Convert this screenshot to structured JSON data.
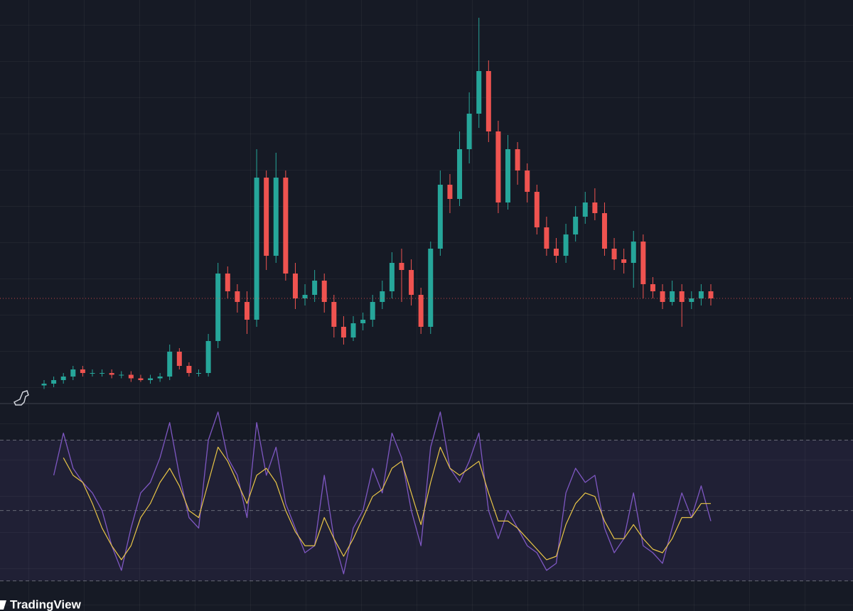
{
  "chart_data": [
    {
      "type": "candlestick",
      "categories": [
        null,
        null,
        null,
        null,
        null,
        null,
        null,
        null,
        null,
        null,
        null,
        null,
        null,
        null,
        null,
        null,
        null,
        null,
        null,
        null,
        null,
        null,
        null,
        null,
        null,
        null,
        null,
        null,
        null,
        null,
        null,
        null,
        null,
        null,
        null,
        null,
        null,
        null,
        null,
        null,
        null,
        null,
        null,
        null,
        null,
        null,
        null,
        null,
        null,
        null,
        null,
        null,
        null,
        null,
        null,
        null,
        null,
        null,
        null,
        null,
        null,
        null,
        null,
        null,
        null,
        null,
        null,
        null,
        null,
        null
      ],
      "open": [
        3.5,
        4,
        5,
        6,
        8,
        7,
        7,
        7,
        6.5,
        6.5,
        5.5,
        5,
        5.5,
        6,
        13,
        9,
        7,
        7,
        16,
        35,
        30,
        27,
        22,
        62,
        40,
        62,
        35,
        28,
        29,
        33,
        27,
        20,
        17,
        21,
        22,
        27,
        30,
        38,
        36,
        29,
        20,
        42,
        60,
        56,
        70,
        80,
        92,
        75,
        55,
        70,
        64,
        58,
        48,
        42,
        40,
        46,
        51,
        55,
        52,
        42,
        39,
        38,
        44,
        32,
        30,
        27,
        30,
        27,
        28,
        30
      ],
      "high": [
        5,
        6,
        7,
        9,
        9,
        8,
        8,
        8,
        7.5,
        7.5,
        6.5,
        6.5,
        7,
        15,
        14,
        10,
        8,
        18,
        38,
        37,
        32,
        30,
        70,
        64,
        69,
        64,
        38,
        32,
        36,
        35,
        29,
        23,
        23,
        24,
        29,
        33,
        41,
        42,
        39,
        31,
        44,
        64,
        63,
        75,
        86,
        107,
        95,
        78,
        74,
        72,
        66,
        60,
        51,
        45,
        49,
        54,
        58,
        59,
        55,
        45,
        42,
        47,
        46,
        34,
        32,
        33,
        32,
        30,
        32,
        32
      ],
      "low": [
        2.5,
        3,
        4,
        5,
        6,
        6,
        6,
        5.5,
        5.5,
        4.5,
        4.5,
        4,
        4.5,
        5,
        8,
        6,
        6,
        6,
        14,
        28,
        24,
        18,
        20,
        36,
        38,
        33,
        25,
        26,
        27,
        24,
        17,
        15,
        16,
        19,
        20,
        25,
        28,
        27,
        26,
        18,
        18,
        40,
        52,
        54,
        66,
        76,
        72,
        52,
        53,
        60,
        55,
        46,
        40,
        38,
        38,
        44,
        49,
        50,
        40,
        36,
        35,
        31,
        28,
        28,
        25,
        26,
        20,
        25,
        26,
        26
      ],
      "close": [
        4,
        5,
        6,
        8,
        7,
        7,
        7,
        6.5,
        6.5,
        5.5,
        5,
        5.5,
        6,
        13,
        9,
        7,
        7,
        16,
        35,
        30,
        27,
        22,
        62,
        40,
        62,
        35,
        28,
        29,
        33,
        27,
        20,
        17,
        21,
        22,
        27,
        30,
        38,
        36,
        29,
        20,
        42,
        60,
        56,
        70,
        80,
        92,
        75,
        55,
        70,
        64,
        58,
        48,
        42,
        40,
        46,
        51,
        55,
        52,
        42,
        39,
        38,
        44,
        32,
        30,
        27,
        30,
        27,
        28,
        30,
        28
      ],
      "up_color": "#26a69a",
      "down_color": "#ef5350",
      "ylim": [
        0,
        112
      ],
      "last_price_line": true
    },
    {
      "type": "line",
      "series": [
        {
          "color": "#7e57c2",
          "values": [
            null,
            60,
            72,
            62,
            58,
            55,
            50,
            40,
            33,
            45,
            55,
            58,
            65,
            75,
            60,
            48,
            45,
            70,
            78,
            65,
            60,
            48,
            75,
            60,
            68,
            52,
            45,
            38,
            40,
            60,
            42,
            32,
            45,
            50,
            62,
            55,
            72,
            65,
            50,
            40,
            68,
            78,
            62,
            58,
            64,
            72,
            50,
            42,
            50,
            45,
            40,
            38,
            33,
            35,
            55,
            62,
            58,
            60,
            45,
            38,
            42,
            55,
            40,
            38,
            35,
            45,
            55,
            48,
            57,
            47
          ]
        },
        {
          "color": "#e8c547",
          "values": [
            null,
            null,
            65,
            60,
            58,
            52,
            45,
            40,
            36,
            40,
            48,
            52,
            58,
            62,
            57,
            50,
            48,
            58,
            68,
            64,
            58,
            52,
            60,
            62,
            58,
            50,
            44,
            40,
            40,
            48,
            42,
            37,
            42,
            48,
            54,
            56,
            62,
            64,
            55,
            46,
            58,
            68,
            62,
            60,
            62,
            64,
            55,
            47,
            47,
            45,
            42,
            39,
            36,
            37,
            46,
            52,
            55,
            54,
            47,
            42,
            42,
            46,
            42,
            39,
            38,
            42,
            48,
            48,
            52,
            52
          ]
        }
      ],
      "levels": [
        70,
        50,
        30
      ],
      "band": [
        30,
        70
      ],
      "band_color": "#7e57c2",
      "ylim": [
        27.5,
        80
      ]
    }
  ],
  "branding": "TradingView"
}
